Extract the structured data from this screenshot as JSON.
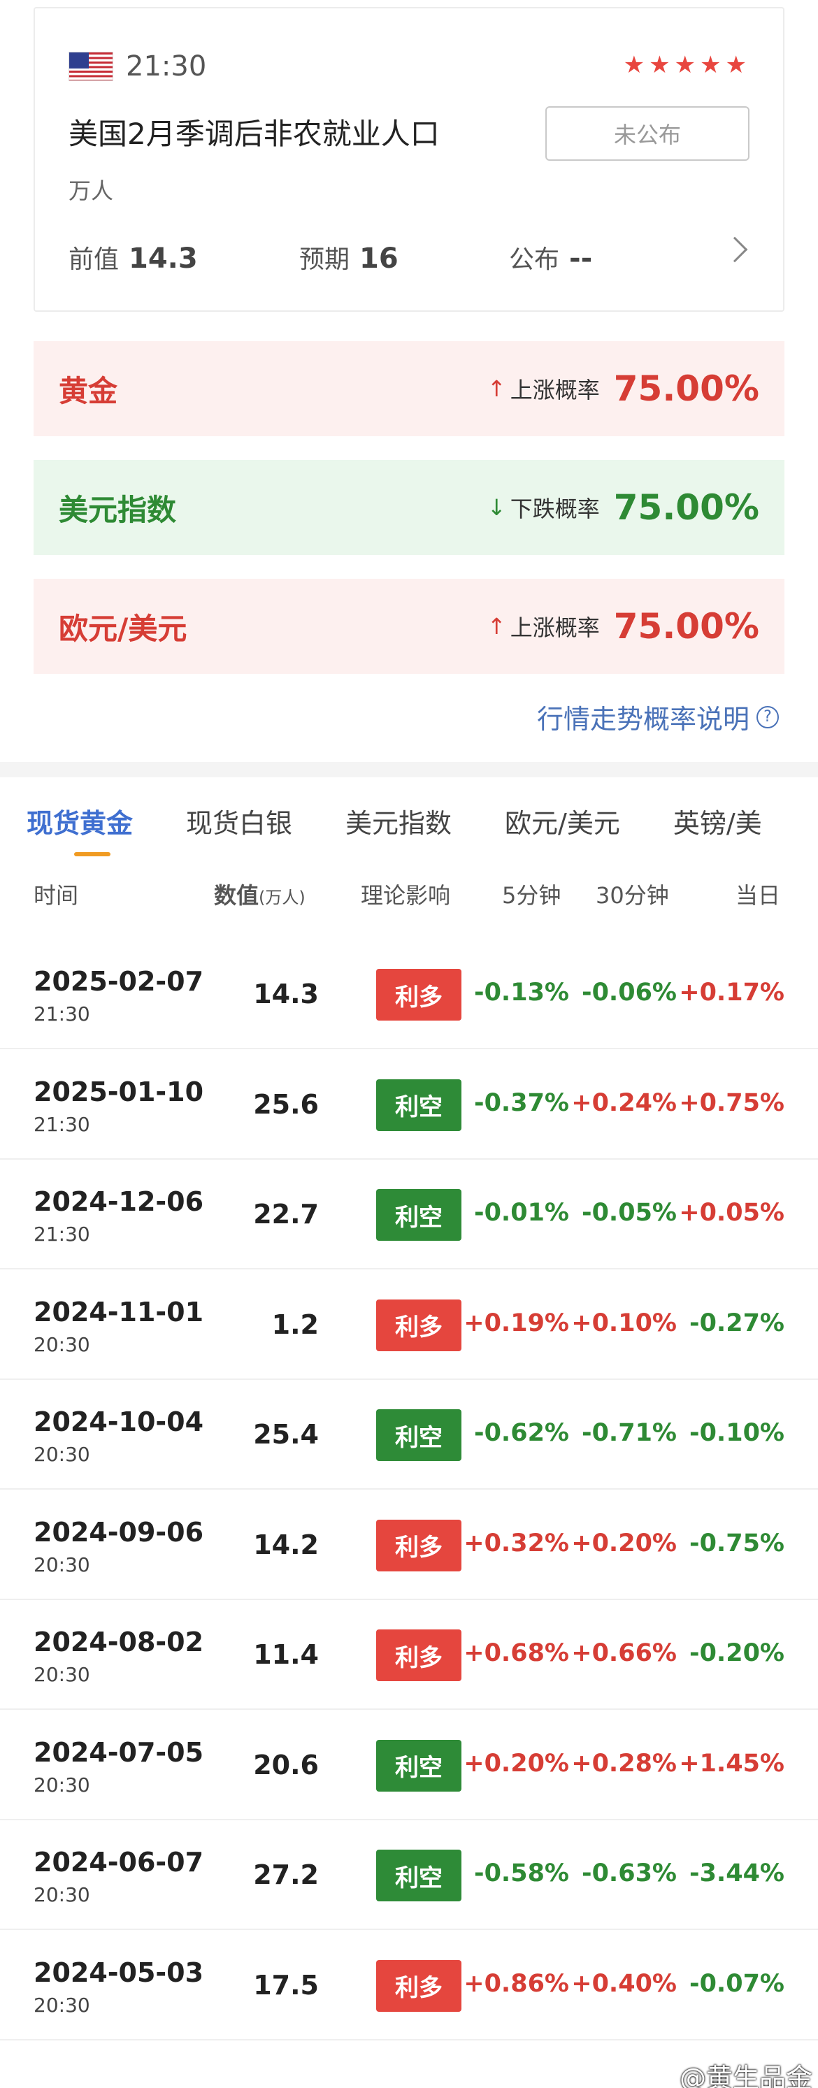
{
  "event": {
    "time": "21:30",
    "stars": 5,
    "title": "美国2月季调后非农就业人口",
    "unit": "万人",
    "status_label": "未公布",
    "previous_label": "前值",
    "previous_value": "14.3",
    "forecast_label": "预期",
    "forecast_value": "16",
    "actual_label": "公布",
    "actual_value": "--"
  },
  "probabilities": [
    {
      "asset": "黄金",
      "direction": "up",
      "arrow": "↑",
      "label": "上涨概率",
      "value": "75.00%"
    },
    {
      "asset": "美元指数",
      "direction": "down",
      "arrow": "↓",
      "label": "下跌概率",
      "value": "75.00%"
    },
    {
      "asset": "欧元/美元",
      "direction": "up",
      "arrow": "↑",
      "label": "上涨概率",
      "value": "75.00%"
    }
  ],
  "explain_link": "行情走势概率说明",
  "tabs": [
    "现货黄金",
    "现货白银",
    "美元指数",
    "欧元/美元",
    "英镑/美"
  ],
  "table": {
    "headers": {
      "time": "时间",
      "value": "数值",
      "value_unit": "(万人)",
      "impact": "理论影响",
      "m5": "5分钟",
      "m30": "30分钟",
      "day": "当日"
    },
    "rows": [
      {
        "date": "2025-02-07",
        "time": "21:30",
        "value": "14.3",
        "impact": "利多",
        "m5": "-0.13%",
        "m30": "-0.06%",
        "day": "+0.17%"
      },
      {
        "date": "2025-01-10",
        "time": "21:30",
        "value": "25.6",
        "impact": "利空",
        "m5": "-0.37%",
        "m30": "+0.24%",
        "day": "+0.75%"
      },
      {
        "date": "2024-12-06",
        "time": "21:30",
        "value": "22.7",
        "impact": "利空",
        "m5": "-0.01%",
        "m30": "-0.05%",
        "day": "+0.05%"
      },
      {
        "date": "2024-11-01",
        "time": "20:30",
        "value": "1.2",
        "impact": "利多",
        "m5": "+0.19%",
        "m30": "+0.10%",
        "day": "-0.27%"
      },
      {
        "date": "2024-10-04",
        "time": "20:30",
        "value": "25.4",
        "impact": "利空",
        "m5": "-0.62%",
        "m30": "-0.71%",
        "day": "-0.10%"
      },
      {
        "date": "2024-09-06",
        "time": "20:30",
        "value": "14.2",
        "impact": "利多",
        "m5": "+0.32%",
        "m30": "+0.20%",
        "day": "-0.75%"
      },
      {
        "date": "2024-08-02",
        "time": "20:30",
        "value": "11.4",
        "impact": "利多",
        "m5": "+0.68%",
        "m30": "+0.66%",
        "day": "-0.20%"
      },
      {
        "date": "2024-07-05",
        "time": "20:30",
        "value": "20.6",
        "impact": "利空",
        "m5": "+0.20%",
        "m30": "+0.28%",
        "day": "+1.45%"
      },
      {
        "date": "2024-06-07",
        "time": "20:30",
        "value": "27.2",
        "impact": "利空",
        "m5": "-0.58%",
        "m30": "-0.63%",
        "day": "-3.44%"
      },
      {
        "date": "2024-05-03",
        "time": "20:30",
        "value": "17.5",
        "impact": "利多",
        "m5": "+0.86%",
        "m30": "+0.40%",
        "day": "-0.07%"
      }
    ]
  },
  "watermark": "@黄生品金",
  "colors": {
    "up": "#d63d35",
    "down": "#2e8a34",
    "accent": "#3f6fd0",
    "tab_underline": "#f09b22"
  }
}
